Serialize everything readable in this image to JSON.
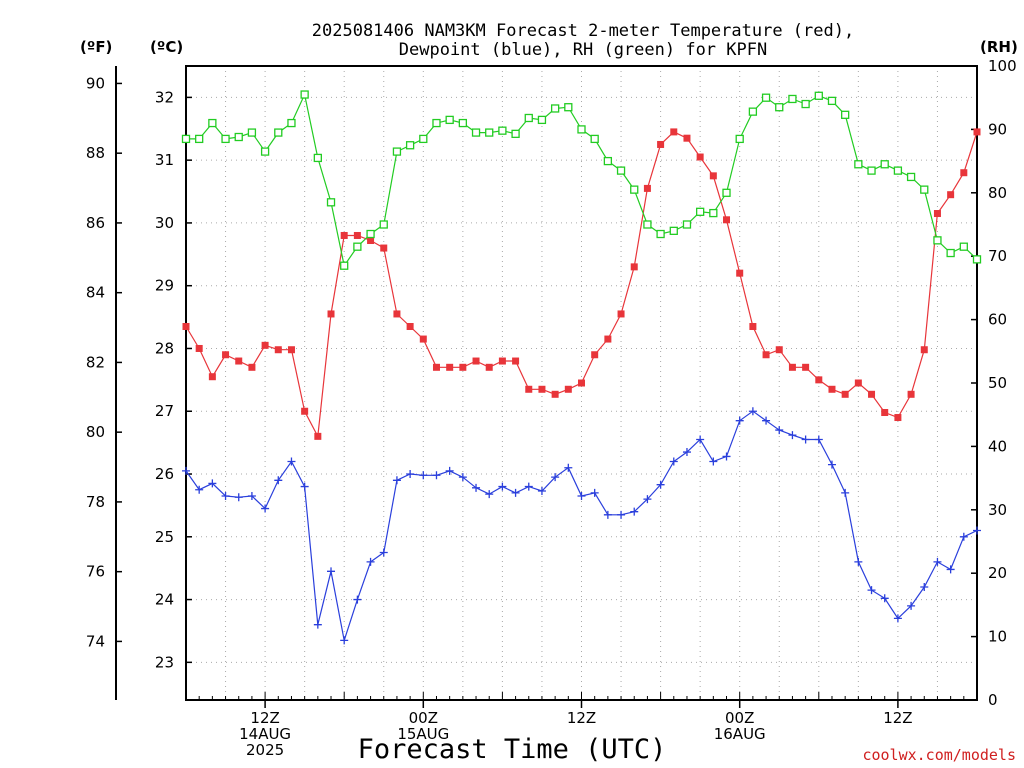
{
  "title": {
    "line1": "2025081406 NAM3KM Forecast 2-meter Temperature (red),",
    "line2": "Dewpoint (blue), RH (green) for KPFN"
  },
  "units": {
    "fahrenheit": "(ºF)",
    "celsius": "(ºC)",
    "rh": "(RH)"
  },
  "x_axis_title": "Forecast Time (UTC)",
  "credit": "coolwx.com/models",
  "x_ticks": [
    {
      "hour": 12,
      "lines": [
        "12Z",
        "14AUG",
        "2025"
      ]
    },
    {
      "hour": 24,
      "lines": [
        "00Z",
        "15AUG"
      ]
    },
    {
      "hour": 36,
      "lines": [
        "12Z"
      ]
    },
    {
      "hour": 48,
      "lines": [
        "00Z",
        "16AUG"
      ]
    },
    {
      "hour": 60,
      "lines": [
        "12Z"
      ]
    }
  ],
  "colors": {
    "temperature": "#e8353a",
    "dewpoint": "#2a3fdc",
    "rh": "#22cc22",
    "grid": "#aaaaaa",
    "credit": "#d02020"
  },
  "chart_data": {
    "type": "line",
    "x_units": "forecast hour (UTC) from 2025-08-14 06Z",
    "xlim": [
      6,
      66
    ],
    "celsius_axis": {
      "lim": [
        22.4,
        32.5
      ],
      "ticks": [
        23,
        24,
        25,
        26,
        27,
        28,
        29,
        30,
        31,
        32
      ]
    },
    "fahrenheit_axis": {
      "ticks": [
        74,
        76,
        78,
        80,
        82,
        84,
        86,
        88,
        90
      ]
    },
    "rh_axis": {
      "lim": [
        0,
        100
      ],
      "ticks": [
        0,
        10,
        20,
        30,
        40,
        50,
        60,
        70,
        80,
        90,
        100
      ]
    },
    "grid": true,
    "series": [
      {
        "name": "2-meter Temperature",
        "axis": "celsius",
        "marker": "filled-square",
        "x": [
          6,
          7,
          8,
          9,
          10,
          11,
          12,
          13,
          14,
          15,
          16,
          17,
          18,
          19,
          20,
          21,
          22,
          23,
          24,
          25,
          26,
          27,
          28,
          29,
          30,
          31,
          32,
          33,
          34,
          35,
          36,
          37,
          38,
          39,
          40,
          41,
          42,
          43,
          44,
          45,
          46,
          47,
          48,
          49,
          50,
          51,
          52,
          53,
          54,
          55,
          56,
          57,
          58,
          59,
          60,
          61,
          62,
          63,
          64,
          65,
          66
        ],
        "values": [
          28.35,
          28.0,
          27.55,
          27.9,
          27.8,
          27.7,
          28.05,
          27.98,
          27.98,
          27.0,
          26.6,
          28.55,
          29.8,
          29.8,
          29.72,
          29.6,
          28.55,
          28.35,
          28.15,
          27.7,
          27.7,
          27.7,
          27.8,
          27.7,
          27.8,
          27.8,
          27.35,
          27.35,
          27.27,
          27.35,
          27.45,
          27.9,
          28.15,
          28.55,
          29.3,
          30.55,
          31.25,
          31.45,
          31.35,
          31.05,
          30.75,
          30.05,
          29.2,
          28.35,
          27.9,
          27.98,
          27.7,
          27.7,
          27.5,
          27.35,
          27.27,
          27.45,
          27.27,
          26.98,
          26.9,
          27.27,
          27.98,
          30.15,
          30.45,
          30.8,
          31.45
        ]
      },
      {
        "name": "Dewpoint",
        "axis": "celsius",
        "marker": "plus",
        "x": [
          6,
          7,
          8,
          9,
          10,
          11,
          12,
          13,
          14,
          15,
          16,
          17,
          18,
          19,
          20,
          21,
          22,
          23,
          24,
          25,
          26,
          27,
          28,
          29,
          30,
          31,
          32,
          33,
          34,
          35,
          36,
          37,
          38,
          39,
          40,
          41,
          42,
          43,
          44,
          45,
          46,
          47,
          48,
          49,
          50,
          51,
          52,
          53,
          54,
          55,
          56,
          57,
          58,
          59,
          60,
          61,
          62,
          63,
          64,
          65,
          66
        ],
        "values": [
          26.05,
          25.75,
          25.85,
          25.65,
          25.63,
          25.65,
          25.45,
          25.9,
          26.2,
          25.8,
          23.6,
          24.45,
          23.35,
          24.0,
          24.6,
          24.75,
          25.9,
          26.0,
          25.98,
          25.98,
          26.05,
          25.95,
          25.78,
          25.68,
          25.8,
          25.7,
          25.8,
          25.73,
          25.95,
          26.1,
          25.65,
          25.7,
          25.35,
          25.35,
          25.4,
          25.6,
          25.83,
          26.2,
          26.35,
          26.55,
          26.2,
          26.28,
          26.85,
          27.0,
          26.85,
          26.7,
          26.62,
          26.55,
          26.55,
          26.15,
          25.7,
          24.6,
          24.15,
          24.02,
          23.7,
          23.9,
          24.2,
          24.6,
          24.48,
          25.0,
          25.1
        ]
      },
      {
        "name": "RH",
        "axis": "rh",
        "marker": "open-square",
        "x": [
          6,
          7,
          8,
          9,
          10,
          11,
          12,
          13,
          14,
          15,
          16,
          17,
          18,
          19,
          20,
          21,
          22,
          23,
          24,
          25,
          26,
          27,
          28,
          29,
          30,
          31,
          32,
          33,
          34,
          35,
          36,
          37,
          38,
          39,
          40,
          41,
          42,
          43,
          44,
          45,
          46,
          47,
          48,
          49,
          50,
          51,
          52,
          53,
          54,
          55,
          56,
          57,
          58,
          59,
          60,
          61,
          62,
          63,
          64,
          65,
          66
        ],
        "values": [
          88.5,
          88.5,
          91.0,
          88.5,
          88.8,
          89.5,
          86.5,
          89.5,
          91.0,
          95.5,
          85.5,
          78.5,
          68.5,
          71.5,
          73.5,
          75.0,
          86.5,
          87.5,
          88.5,
          91.0,
          91.5,
          91.0,
          89.5,
          89.5,
          89.8,
          89.3,
          91.8,
          91.5,
          93.3,
          93.5,
          90.0,
          88.5,
          85.0,
          83.5,
          80.5,
          75.0,
          73.5,
          74.0,
          75.0,
          77.0,
          76.8,
          80.0,
          88.5,
          92.8,
          95.0,
          93.5,
          94.8,
          94.0,
          95.3,
          94.5,
          92.3,
          84.5,
          83.5,
          84.5,
          83.5,
          82.5,
          80.5,
          72.5,
          70.5,
          71.5,
          69.5
        ]
      }
    ]
  }
}
